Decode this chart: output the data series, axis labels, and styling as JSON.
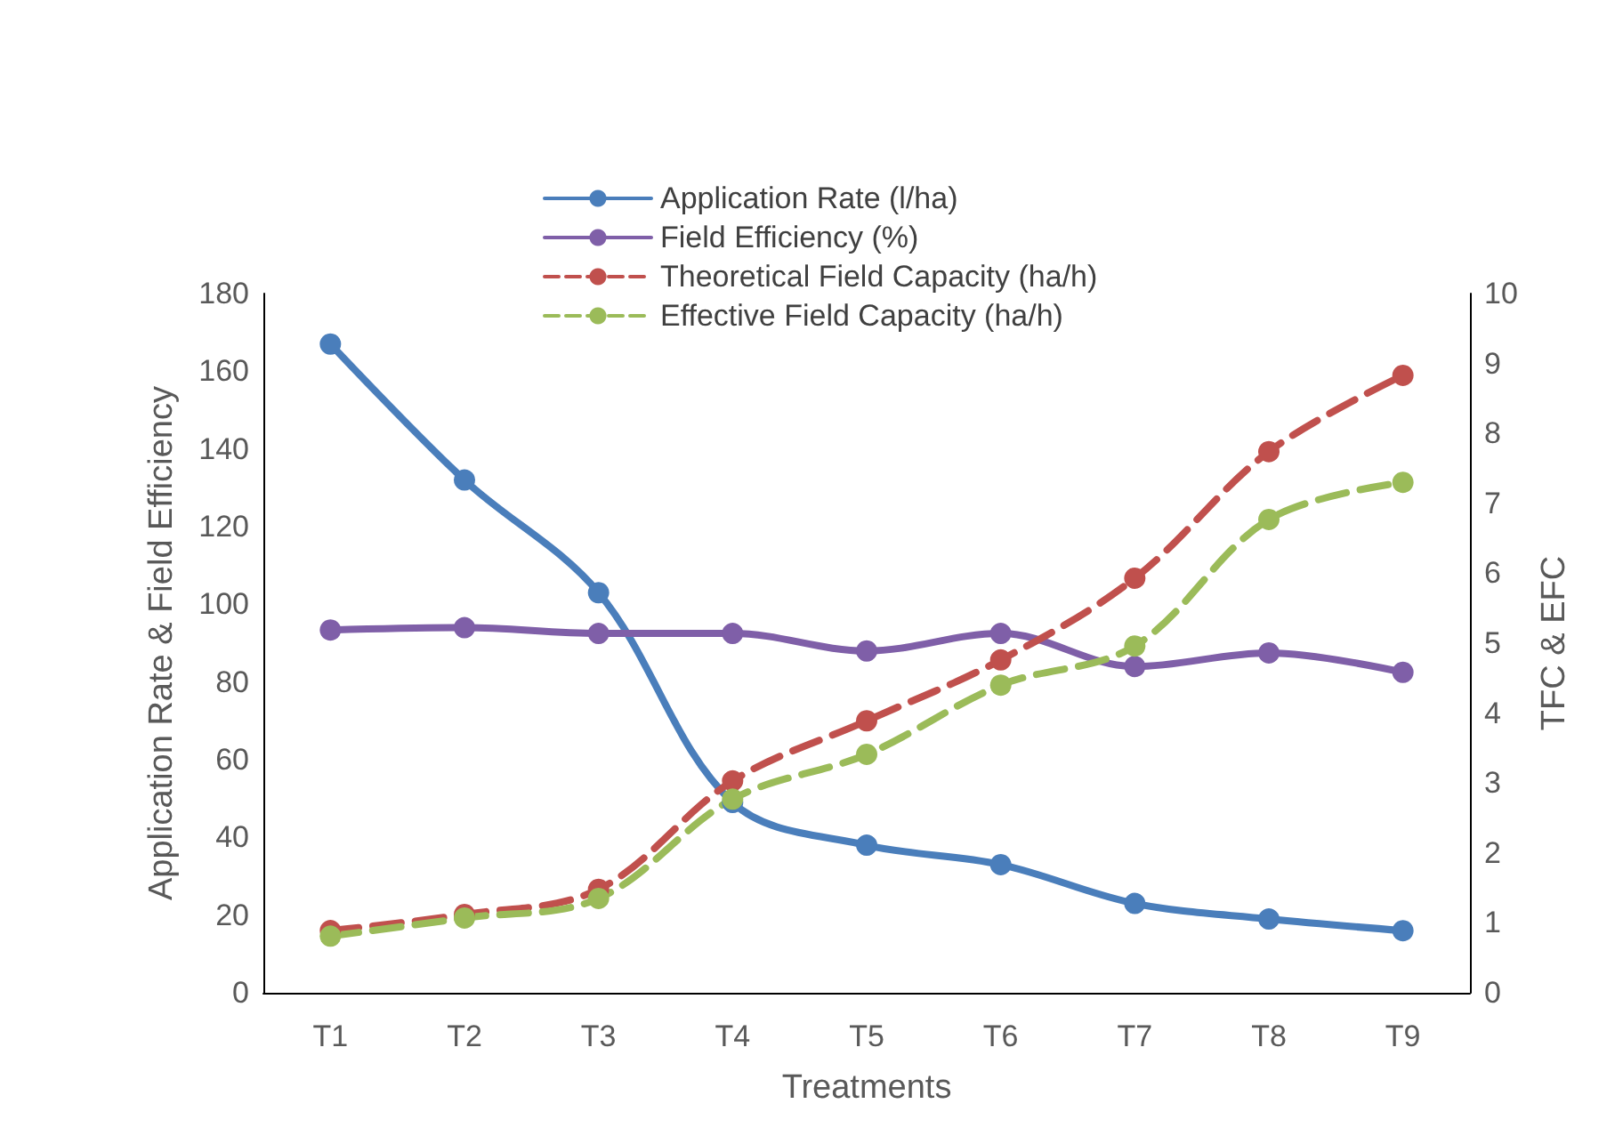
{
  "chart_data": {
    "type": "line",
    "xlabel": "Treatments",
    "ylabel": "Application Rate & Field Efficiency",
    "y2label": "TFC & EFC",
    "categories": [
      "T1",
      "T2",
      "T3",
      "T4",
      "T5",
      "T6",
      "T7",
      "T8",
      "T9"
    ],
    "series": [
      {
        "name": "Application Rate (l/ha)",
        "color": "#4a7ebb",
        "line_style": "solid",
        "values": [
          167,
          132,
          103,
          49,
          38,
          33,
          23,
          19,
          16
        ]
      },
      {
        "name": "Field Efficiency (%)",
        "color": "#7f5fa8",
        "line_style": "solid",
        "values": [
          93.4,
          94,
          92.5,
          92.5,
          88,
          92.5,
          84,
          87.5,
          82.5
        ]
      },
      {
        "name": "Theoretical Field Capacity (ha/h)",
        "color": "#c0504d",
        "line_style": "dashed",
        "axis": "y2",
        "values": [
          0.89,
          1.12,
          1.48,
          3.03,
          3.89,
          4.76,
          5.93,
          7.74,
          8.83
        ]
      },
      {
        "name": "Effective Field Capacity (ha/h)",
        "color": "#9bbb59",
        "line_style": "dashed",
        "axis": "y2",
        "values": [
          0.81,
          1.07,
          1.35,
          2.77,
          3.41,
          4.4,
          4.96,
          6.77,
          7.3
        ]
      }
    ],
    "ylim": [
      0,
      180
    ],
    "yticks": [
      0,
      20,
      40,
      60,
      80,
      100,
      120,
      140,
      160,
      180
    ],
    "y2lim": [
      0,
      10
    ],
    "y2ticks": [
      0,
      1,
      2,
      3,
      4,
      5,
      6,
      7,
      8,
      9,
      10
    ],
    "marker": "circle",
    "grid": false,
    "legend": "top"
  }
}
